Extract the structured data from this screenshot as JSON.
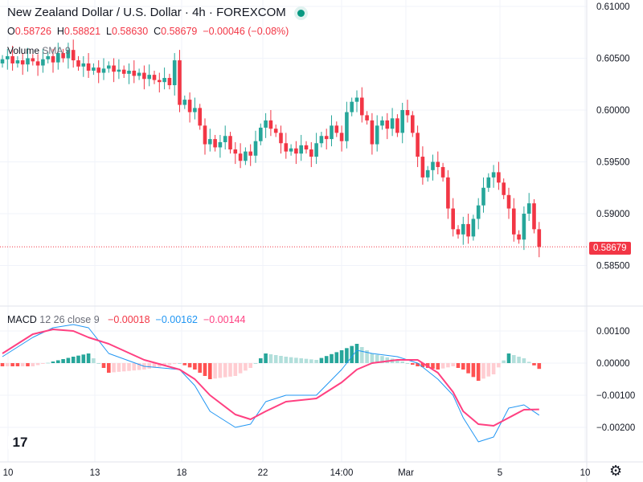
{
  "header": {
    "title": "New Zealand Dollar / U.S. Dollar · 4h · FOREXCOM",
    "o_label": "O",
    "o": "0.58726",
    "h_label": "H",
    "h": "0.58821",
    "l_label": "L",
    "l": "0.58630",
    "c_label": "C",
    "c": "0.58679",
    "change": "−0.00046 (−0.08%)",
    "volume_label": "Volume",
    "volume_sma": "SMA 9"
  },
  "macd_legend": {
    "name": "MACD",
    "params": "12 26 close 9",
    "hist": "−0.00018",
    "macd": "−0.00162",
    "signal": "−0.00144"
  },
  "current_price": "0.58679",
  "colors": {
    "up": "#26a69a",
    "down": "#f23645",
    "macd": "#2196f3",
    "signal": "#ff4081"
  },
  "chart_data": [
    {
      "type": "candlestick",
      "title": "New Zealand Dollar / U.S. Dollar · 4h · FOREXCOM",
      "ylim": [
        0.5825,
        0.6115
      ],
      "y_ticks": [
        "0.61000",
        "0.60500",
        "0.60000",
        "0.59500",
        "0.59000",
        "0.58500"
      ],
      "x_ticks": [
        "10",
        "13",
        "18",
        "22",
        "14:00",
        "Mar",
        "5",
        "10"
      ],
      "first_open": 0.6045,
      "closes": [
        0.6049,
        0.6052,
        0.6045,
        0.6048,
        0.6044,
        0.605,
        0.6047,
        0.6043,
        0.6049,
        0.6052,
        0.6046,
        0.6055,
        0.605,
        0.6058,
        0.6048,
        0.6042,
        0.6045,
        0.6038,
        0.6041,
        0.6036,
        0.604,
        0.6043,
        0.6037,
        0.6039,
        0.6035,
        0.6038,
        0.6033,
        0.6036,
        0.603,
        0.6034,
        0.6029,
        0.6027,
        0.6031,
        0.6024,
        0.6048,
        0.6005,
        0.601,
        0.5998,
        0.6002,
        0.5985,
        0.5967,
        0.5972,
        0.5964,
        0.5969,
        0.5975,
        0.5962,
        0.5958,
        0.5951,
        0.596,
        0.5956,
        0.597,
        0.5983,
        0.599,
        0.5982,
        0.5978,
        0.5968,
        0.596,
        0.5963,
        0.5958,
        0.5966,
        0.5962,
        0.5955,
        0.5968,
        0.5975,
        0.5972,
        0.5985,
        0.5978,
        0.597,
        0.5998,
        0.6008,
        0.6012,
        0.5995,
        0.599,
        0.5967,
        0.5985,
        0.599,
        0.5982,
        0.5992,
        0.5978,
        0.6,
        0.5995,
        0.5978,
        0.5955,
        0.5935,
        0.5942,
        0.595,
        0.5945,
        0.5935,
        0.5905,
        0.5885,
        0.588,
        0.589,
        0.5878,
        0.5895,
        0.5908,
        0.5925,
        0.5935,
        0.594,
        0.593,
        0.5918,
        0.5905,
        0.588,
        0.5875,
        0.59,
        0.591,
        0.5885,
        0.5868
      ]
    },
    {
      "type": "line",
      "title": "MACD 12 26 close 9",
      "ylim": [
        -0.0031,
        0.0016
      ],
      "y_ticks": [
        "0.00100",
        "0.00000",
        "−0.00100",
        "−0.00200"
      ],
      "x": [
        0,
        6,
        10,
        14,
        17,
        21,
        28,
        35,
        38,
        41,
        46,
        49,
        52,
        56,
        62,
        67,
        70,
        73,
        78,
        82,
        86,
        89,
        91,
        94,
        97,
        100,
        103,
        106
      ],
      "macd": [
        0.0002,
        0.0008,
        0.0011,
        0.0012,
        0.0011,
        0.0003,
        -0.0001,
        -0.0002,
        -0.0007,
        -0.0015,
        -0.002,
        -0.0019,
        -0.0012,
        -0.001,
        -0.001,
        -0.0002,
        0.0004,
        0.0003,
        0.0002,
        0.0,
        -0.0005,
        -0.001,
        -0.0017,
        -0.00245,
        -0.0023,
        -0.0014,
        -0.0013,
        -0.00162
      ],
      "signal": [
        0.0003,
        0.0009,
        0.00105,
        0.001,
        0.0008,
        0.0006,
        0.0001,
        -0.0002,
        -0.0005,
        -0.001,
        -0.0016,
        -0.00175,
        -0.0015,
        -0.0012,
        -0.0011,
        -0.0006,
        -0.0002,
        0.0,
        0.0001,
        0.0001,
        -0.0003,
        -0.0009,
        -0.0015,
        -0.0019,
        -0.00195,
        -0.0017,
        -0.00145,
        -0.00144
      ]
    }
  ]
}
